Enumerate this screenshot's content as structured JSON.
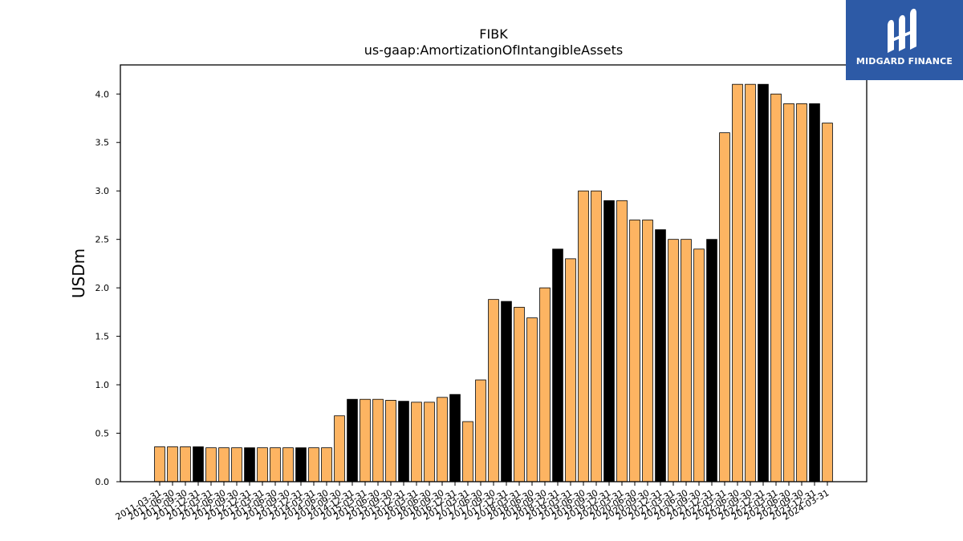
{
  "chart_data": {
    "type": "bar",
    "title": "FIBK",
    "subtitle": "us-gaap:AmortizationOfIntangibleAssets",
    "xlabel": "",
    "ylabel": "USDm",
    "ylim": [
      0,
      4.3
    ],
    "yticks": [
      "0.0",
      "0.5",
      "1.0",
      "1.5",
      "2.0",
      "2.5",
      "3.0",
      "3.5",
      "4.0"
    ],
    "grid": false,
    "colors": {
      "bar": "#fdb462",
      "highlight": "#000000",
      "edge": "#000000"
    },
    "categories": [
      "2011-03-31",
      "2011-06-30",
      "2011-09-30",
      "2011-12-31",
      "2012-03-31",
      "2012-06-30",
      "2012-09-30",
      "2012-12-31",
      "2013-03-31",
      "2013-06-30",
      "2013-09-30",
      "2013-12-31",
      "2014-03-31",
      "2014-06-30",
      "2014-09-30",
      "2014-12-31",
      "2015-03-31",
      "2015-06-30",
      "2015-09-30",
      "2015-12-31",
      "2016-03-31",
      "2016-06-30",
      "2016-09-30",
      "2016-12-31",
      "2017-03-31",
      "2017-06-30",
      "2017-09-30",
      "2017-12-31",
      "2018-03-31",
      "2018-06-30",
      "2018-09-30",
      "2018-12-31",
      "2019-03-31",
      "2019-06-30",
      "2019-09-30",
      "2019-12-31",
      "2020-03-31",
      "2020-06-30",
      "2020-09-30",
      "2020-12-31",
      "2021-03-31",
      "2021-06-30",
      "2021-09-30",
      "2021-12-31",
      "2022-03-31",
      "2022-06-30",
      "2022-09-30",
      "2022-12-31",
      "2023-03-31",
      "2023-06-30",
      "2023-09-30",
      "2023-12-31",
      "2024-03-31"
    ],
    "values": [
      0.36,
      0.36,
      0.36,
      0.36,
      0.35,
      0.35,
      0.35,
      0.35,
      0.35,
      0.35,
      0.35,
      0.35,
      0.35,
      0.35,
      0.68,
      0.85,
      0.85,
      0.85,
      0.84,
      0.83,
      0.82,
      0.82,
      0.87,
      0.9,
      0.62,
      1.05,
      1.88,
      1.86,
      1.8,
      1.69,
      2.0,
      2.4,
      2.3,
      3.0,
      3.0,
      2.9,
      2.9,
      2.7,
      2.7,
      2.6,
      2.5,
      2.5,
      2.4,
      2.5,
      3.6,
      4.1,
      4.1,
      4.1,
      4.0,
      3.9,
      3.9,
      3.9,
      3.7
    ],
    "highlight_every": 4,
    "highlight_offset": 3
  },
  "logo": {
    "text": "MIDGARD FINANCE",
    "icon": "midgard-logo-icon"
  }
}
